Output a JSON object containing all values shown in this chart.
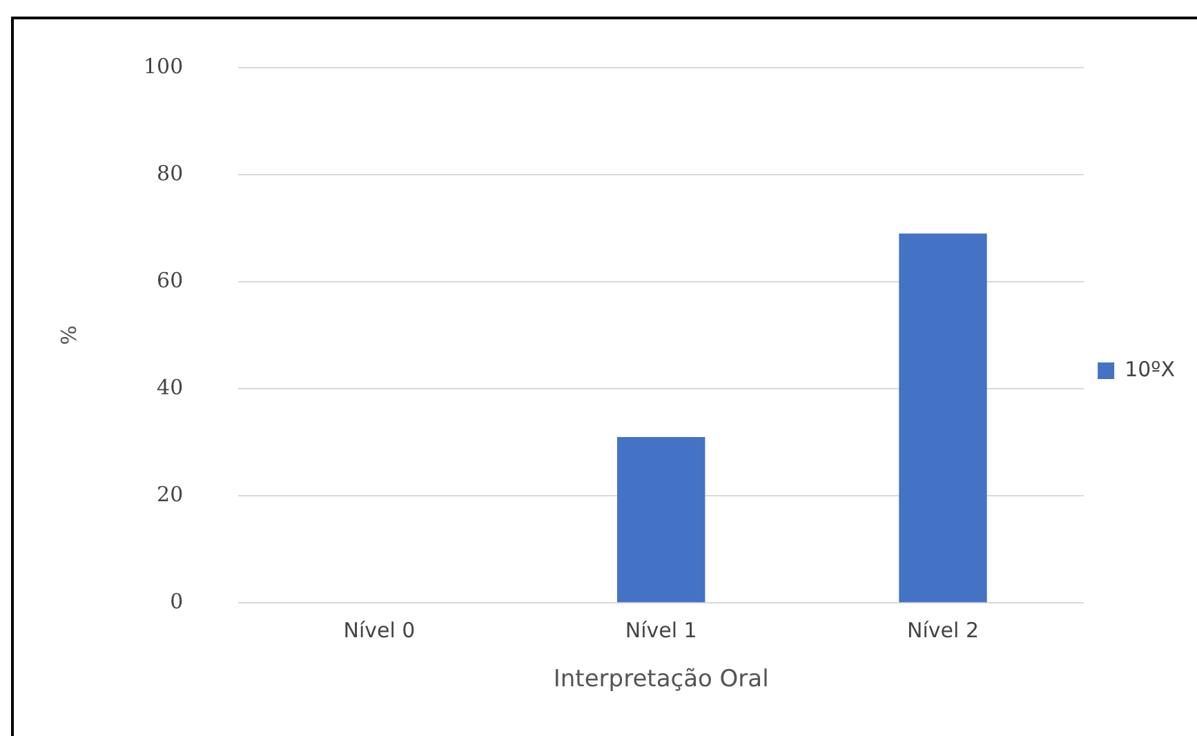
{
  "chart_data": {
    "type": "bar",
    "xlabel": "Interpretação Oral",
    "ylabel": "%",
    "categories": [
      "Nível 0",
      "Nível 1",
      "Nível 2"
    ],
    "series": [
      {
        "name": "10ºX",
        "color": "#4472c4",
        "values": [
          0,
          31,
          69
        ]
      }
    ],
    "ylim": [
      0,
      100
    ],
    "yticks": [
      0,
      20,
      40,
      60,
      80,
      100
    ],
    "grid": "y",
    "legend": "right"
  }
}
